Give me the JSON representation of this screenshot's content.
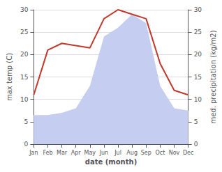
{
  "chart_data": {
    "type": "line",
    "xlabel": "date (month)",
    "ylabel": "max temp (C)",
    "y2label": "med. precipitation (kg/m2)",
    "categories": [
      "Jan",
      "Feb",
      "Mar",
      "Apr",
      "May",
      "Jun",
      "Jul",
      "Aug",
      "Sep",
      "Oct",
      "Nov",
      "Dec"
    ],
    "series": [
      {
        "type": "area",
        "color": "#c5cdf0",
        "axis": "y2",
        "values": [
          6.5,
          6.5,
          7,
          8,
          13,
          24,
          26,
          29,
          27,
          13,
          8,
          7.5
        ]
      },
      {
        "type": "line",
        "color": "#c0392b",
        "values": [
          11,
          21,
          22.5,
          22,
          21.5,
          28,
          30,
          29,
          28,
          18,
          12,
          11
        ]
      }
    ],
    "ylim": [
      0,
      30
    ],
    "yticks": [
      0,
      5,
      10,
      15,
      20,
      25,
      30
    ],
    "y2lim": [
      0,
      30
    ],
    "y2ticks": [
      0,
      5,
      10,
      15,
      20,
      25,
      30
    ],
    "grid": true
  }
}
